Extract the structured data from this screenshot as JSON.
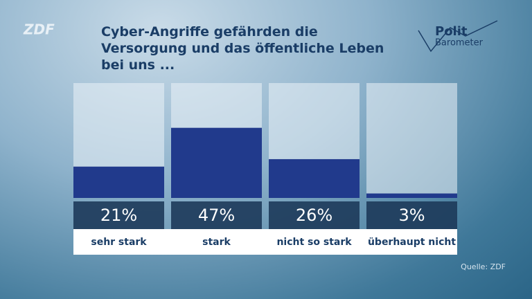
{
  "logo": "ZDF",
  "brand": {
    "line1": "Polit",
    "line2": "Barometer"
  },
  "source": "Quelle: ZDF",
  "chart_data": {
    "type": "bar",
    "title": "Cyber-Angriffe gefährden die Versorgung und das öffentliche Leben bei uns ...",
    "categories": [
      "sehr stark",
      "stark",
      "nicht so stark",
      "überhaupt nicht"
    ],
    "values": [
      21,
      47,
      26,
      3
    ],
    "value_labels": [
      "21%",
      "47%",
      "26%",
      "3%"
    ],
    "color": "#213a8c",
    "ylim": [
      0,
      77
    ]
  }
}
